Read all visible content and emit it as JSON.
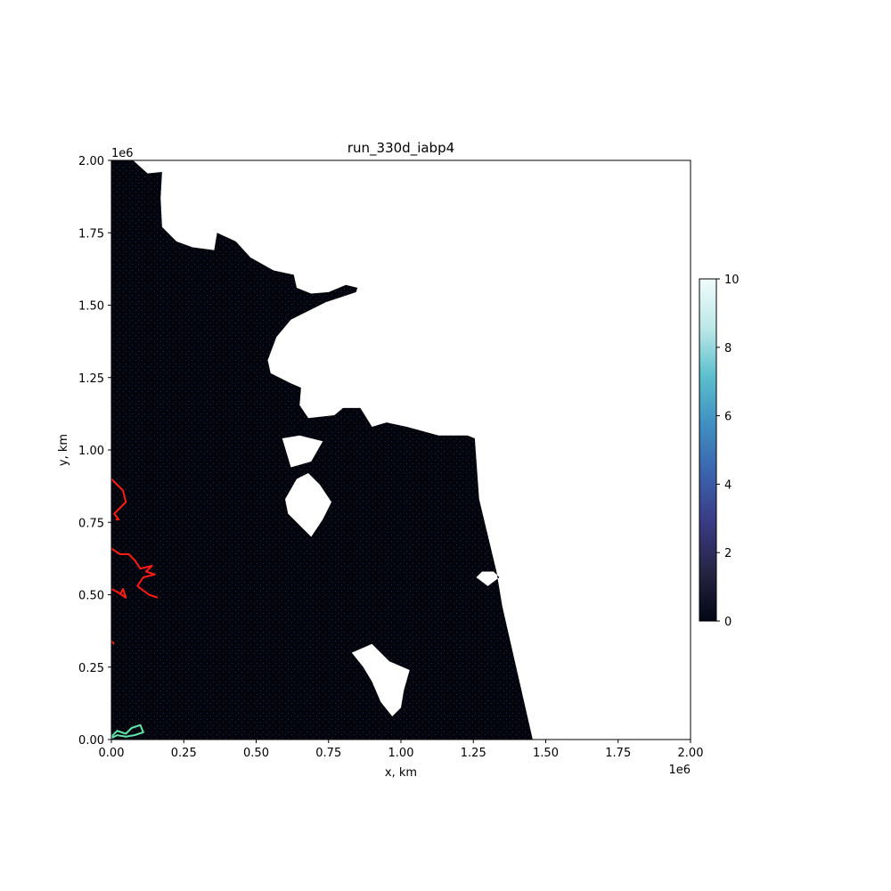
{
  "chart_data": {
    "type": "heatmap",
    "title": "run_330d_iabp4",
    "xlabel": "x, km",
    "ylabel": "y, km",
    "x_offset_text": "1e6",
    "y_offset_text": "1e6",
    "xlim": [
      0,
      2000000
    ],
    "ylim": [
      0,
      2000000
    ],
    "x_ticks": [
      0,
      250000,
      500000,
      750000,
      1000000,
      1250000,
      1500000,
      1750000,
      2000000
    ],
    "x_tick_labels": [
      "0.00",
      "0.25",
      "0.50",
      "0.75",
      "1.00",
      "1.25",
      "1.50",
      "1.75",
      "2.00"
    ],
    "y_ticks": [
      0,
      250000,
      500000,
      750000,
      1000000,
      1250000,
      1500000,
      1750000,
      2000000
    ],
    "y_tick_labels": [
      "0.00",
      "0.25",
      "0.50",
      "0.75",
      "1.00",
      "1.25",
      "1.50",
      "1.75",
      "2.00"
    ],
    "grid": false,
    "colorbar": {
      "range": [
        0,
        10
      ],
      "ticks": [
        0,
        2,
        4,
        6,
        8,
        10
      ],
      "tick_labels": [
        "0",
        "2",
        "4",
        "6",
        "8",
        "10"
      ],
      "colors": [
        "#030615",
        "#252443",
        "#3a3a84",
        "#3b62ac",
        "#3f8ec2",
        "#5bbfcd",
        "#bde8e8",
        "#f0fbfb"
      ]
    },
    "field_color": "#04050c",
    "field_speckle_color": "#1e2a5a",
    "ice_region_outline_km": [
      [
        0,
        2000000
      ],
      [
        75000,
        2000000
      ],
      [
        125000,
        1955000
      ],
      [
        175000,
        1960000
      ],
      [
        170000,
        1870000
      ],
      [
        175000,
        1770000
      ],
      [
        225000,
        1720000
      ],
      [
        280000,
        1700000
      ],
      [
        355000,
        1690000
      ],
      [
        365000,
        1750000
      ],
      [
        430000,
        1720000
      ],
      [
        480000,
        1665000
      ],
      [
        560000,
        1620000
      ],
      [
        630000,
        1605000
      ],
      [
        640000,
        1560000
      ],
      [
        690000,
        1540000
      ],
      [
        750000,
        1545000
      ],
      [
        810000,
        1570000
      ],
      [
        850000,
        1560000
      ],
      [
        845000,
        1545000
      ],
      [
        740000,
        1510000
      ],
      [
        700000,
        1490000
      ],
      [
        620000,
        1450000
      ],
      [
        570000,
        1390000
      ],
      [
        540000,
        1310000
      ],
      [
        550000,
        1265000
      ],
      [
        620000,
        1230000
      ],
      [
        655000,
        1215000
      ],
      [
        650000,
        1155000
      ],
      [
        680000,
        1110000
      ],
      [
        770000,
        1120000
      ],
      [
        800000,
        1145000
      ],
      [
        860000,
        1145000
      ],
      [
        900000,
        1080000
      ],
      [
        950000,
        1095000
      ],
      [
        1020000,
        1080000
      ],
      [
        1130000,
        1050000
      ],
      [
        1230000,
        1050000
      ],
      [
        1255000,
        1040000
      ],
      [
        1270000,
        830000
      ],
      [
        1330000,
        580000
      ],
      [
        1350000,
        460000
      ],
      [
        1455000,
        0
      ],
      [
        0,
        0
      ]
    ],
    "open_water_holes_km": [
      [
        [
          590000,
          1040000
        ],
        [
          650000,
          1050000
        ],
        [
          730000,
          1030000
        ],
        [
          690000,
          960000
        ],
        [
          620000,
          940000
        ]
      ],
      [
        [
          600000,
          830000
        ],
        [
          610000,
          780000
        ],
        [
          650000,
          740000
        ],
        [
          690000,
          700000
        ],
        [
          730000,
          760000
        ],
        [
          760000,
          820000
        ],
        [
          720000,
          880000
        ],
        [
          680000,
          920000
        ],
        [
          640000,
          900000
        ]
      ],
      [
        [
          1260000,
          560000
        ],
        [
          1300000,
          530000
        ],
        [
          1340000,
          560000
        ],
        [
          1320000,
          580000
        ],
        [
          1280000,
          580000
        ]
      ],
      [
        [
          830000,
          300000
        ],
        [
          900000,
          330000
        ],
        [
          960000,
          270000
        ],
        [
          1030000,
          240000
        ],
        [
          1010000,
          170000
        ],
        [
          1000000,
          110000
        ],
        [
          970000,
          80000
        ],
        [
          930000,
          130000
        ],
        [
          900000,
          200000
        ],
        [
          870000,
          250000
        ]
      ]
    ],
    "series": [
      {
        "color": "#ff1a12",
        "x": [
          0,
          20000,
          40000,
          50000,
          30000,
          10000,
          25000,
          15000
        ],
        "y": [
          900000,
          880000,
          860000,
          820000,
          800000,
          780000,
          760000,
          760000
        ]
      },
      {
        "color": "#ff1a12",
        "x": [
          0,
          30000,
          60000,
          80000,
          100000,
          140000,
          120000,
          150000,
          110000,
          90000,
          130000,
          160000
        ],
        "y": [
          660000,
          640000,
          640000,
          620000,
          590000,
          600000,
          580000,
          570000,
          560000,
          530000,
          500000,
          490000
        ]
      },
      {
        "color": "#ff1a12",
        "x": [
          0,
          20000,
          50000,
          40000,
          30000
        ],
        "y": [
          520000,
          510000,
          490000,
          520000,
          500000
        ]
      },
      {
        "color": "#ff1a12",
        "x": [
          0,
          10000
        ],
        "y": [
          340000,
          330000
        ]
      },
      {
        "color": "#5fe4a8",
        "x": [
          0,
          20000,
          50000,
          70000,
          100000,
          110000,
          80000,
          50000,
          20000,
          0
        ],
        "y": [
          10000,
          30000,
          20000,
          40000,
          50000,
          25000,
          15000,
          10000,
          15000,
          5000
        ]
      }
    ]
  }
}
